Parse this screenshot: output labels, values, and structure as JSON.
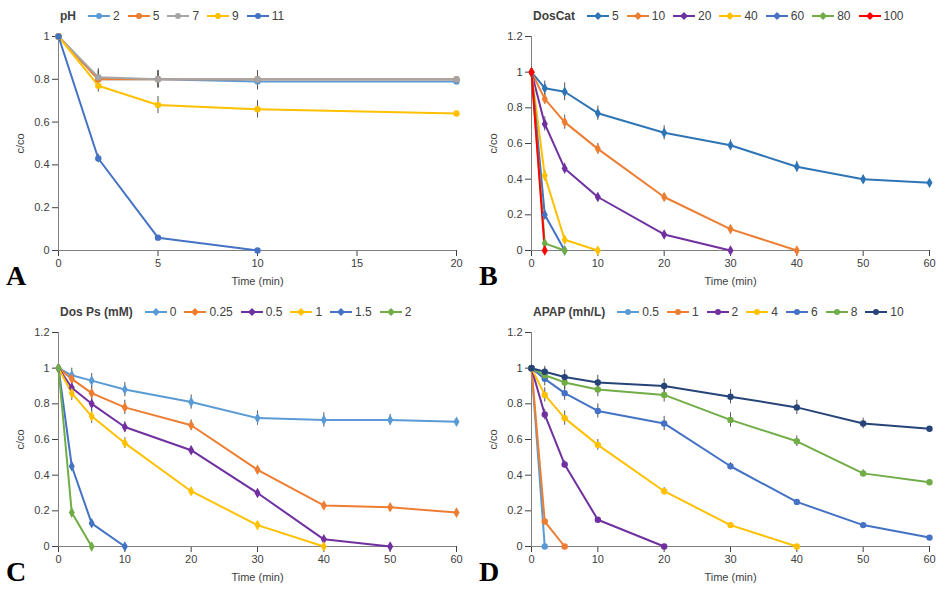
{
  "chart_data": [
    {
      "type": "line",
      "annotation": "A",
      "legend_title": "pH",
      "x_label": "Time (min)",
      "y_label": "c/co",
      "x": [
        0,
        2,
        5,
        10,
        20
      ],
      "xlim": [
        0,
        20
      ],
      "xticks": [
        0,
        5,
        10,
        15,
        20
      ],
      "ylim": [
        0,
        1
      ],
      "yticks": [
        0,
        0.2,
        0.4,
        0.6,
        0.8,
        1
      ],
      "grid": false,
      "legend": "top",
      "marker": "circle",
      "series": [
        {
          "name": "2",
          "color": "#5B9BD5",
          "values": [
            1,
            0.8,
            0.8,
            0.79,
            0.79
          ],
          "errors": [
            0,
            0.04,
            0.04,
            0.04,
            0.03
          ]
        },
        {
          "name": "5",
          "color": "#ED7D31",
          "values": [
            1,
            0.8,
            0.8,
            0.8,
            0.8
          ],
          "errors": [
            0,
            0.04,
            0.04,
            0.04,
            0.03
          ]
        },
        {
          "name": "7",
          "color": "#A5A5A5",
          "values": [
            1,
            0.81,
            0.8,
            0.8,
            0.8
          ],
          "errors": [
            0,
            0.04,
            0.04,
            0.04,
            0.03
          ]
        },
        {
          "name": "9",
          "color": "#FFC000",
          "values": [
            1,
            0.77,
            0.68,
            0.66,
            0.64
          ],
          "errors": [
            0,
            0.03,
            0.04,
            0.04,
            0.03
          ]
        },
        {
          "name": "11",
          "color": "#4472C4",
          "values": [
            1,
            0.43,
            0.06,
            0,
            null
          ],
          "errors": [
            0,
            0.02,
            0.01,
            0,
            null
          ]
        }
      ]
    },
    {
      "type": "line",
      "annotation": "B",
      "legend_title": "DosCat",
      "x_label": "Time (min)",
      "y_label": "c/co",
      "x": [
        0,
        2,
        5,
        10,
        20,
        30,
        40,
        50,
        60
      ],
      "xlim": [
        0,
        60
      ],
      "xticks": [
        0,
        10,
        20,
        30,
        40,
        50,
        60
      ],
      "ylim": [
        0,
        1.2
      ],
      "yticks": [
        0,
        0.2,
        0.4,
        0.6,
        0.8,
        1,
        1.2
      ],
      "grid": false,
      "legend": "top",
      "marker": "diamond",
      "series": [
        {
          "name": "5",
          "color": "#2E75B6",
          "values": [
            1,
            0.91,
            0.89,
            0.77,
            0.66,
            0.59,
            0.47,
            0.4,
            0.38
          ],
          "errors": [
            0.02,
            0.04,
            0.05,
            0.04,
            0.04,
            0.03,
            0.03,
            0.02,
            0.02
          ]
        },
        {
          "name": "10",
          "color": "#ED7D31",
          "values": [
            1,
            0.85,
            0.72,
            0.57,
            0.3,
            0.12,
            0,
            null,
            null
          ],
          "errors": [
            0.02,
            0.03,
            0.04,
            0.03,
            0.02,
            0.01,
            0,
            null,
            null
          ]
        },
        {
          "name": "20",
          "color": "#7030A0",
          "values": [
            1,
            0.71,
            0.46,
            0.3,
            0.09,
            0,
            null,
            null,
            null
          ],
          "errors": [
            0.02,
            0.04,
            0.03,
            0.02,
            0.01,
            0,
            null,
            null,
            null
          ]
        },
        {
          "name": "40",
          "color": "#FFC000",
          "values": [
            1,
            0.42,
            0.06,
            0,
            null,
            null,
            null,
            null,
            null
          ],
          "errors": [
            0.02,
            0.03,
            0.01,
            0,
            null,
            null,
            null,
            null,
            null
          ]
        },
        {
          "name": "60",
          "color": "#4472C4",
          "values": [
            1,
            0.2,
            0,
            null,
            null,
            null,
            null,
            null,
            null
          ],
          "errors": [
            0.02,
            0.02,
            0,
            null,
            null,
            null,
            null,
            null,
            null
          ]
        },
        {
          "name": "80",
          "color": "#70AD47",
          "values": [
            1,
            0.04,
            0,
            null,
            null,
            null,
            null,
            null,
            null
          ],
          "errors": [
            0.02,
            0.01,
            0,
            null,
            null,
            null,
            null,
            null,
            null
          ]
        },
        {
          "name": "100",
          "color": "#FF0000",
          "values": [
            1,
            0,
            null,
            null,
            null,
            null,
            null,
            null,
            null
          ],
          "errors": [
            0.02,
            0,
            null,
            null,
            null,
            null,
            null,
            null,
            null
          ]
        }
      ]
    },
    {
      "type": "line",
      "annotation": "C",
      "legend_title": "Dos Ps (mM)",
      "x_label": "Time (min)",
      "y_label": "c/co",
      "x": [
        0,
        2,
        5,
        10,
        20,
        30,
        40,
        50,
        60
      ],
      "xlim": [
        0,
        60
      ],
      "xticks": [
        0,
        10,
        20,
        30,
        40,
        50,
        60
      ],
      "ylim": [
        0,
        1.2
      ],
      "yticks": [
        0,
        0.2,
        0.4,
        0.6,
        0.8,
        1,
        1.2
      ],
      "grid": false,
      "legend": "top",
      "marker": "diamond",
      "series": [
        {
          "name": "0",
          "color": "#5B9BD5",
          "values": [
            1,
            0.96,
            0.93,
            0.88,
            0.81,
            0.72,
            0.71,
            0.71,
            0.7
          ],
          "errors": [
            0.02,
            0.04,
            0.04,
            0.04,
            0.04,
            0.04,
            0.04,
            0.03,
            0.03
          ]
        },
        {
          "name": "0.25",
          "color": "#ED7D31",
          "values": [
            1,
            0.94,
            0.86,
            0.78,
            0.68,
            0.43,
            0.23,
            0.22,
            0.19
          ],
          "errors": [
            0.02,
            0.04,
            0.04,
            0.04,
            0.03,
            0.02,
            0.01,
            0.01,
            0.01
          ]
        },
        {
          "name": "0.5",
          "color": "#7030A0",
          "values": [
            1,
            0.89,
            0.8,
            0.67,
            0.54,
            0.3,
            0.04,
            0,
            null
          ],
          "errors": [
            0.02,
            0.04,
            0.04,
            0.03,
            0.02,
            0.01,
            0.01,
            0,
            null
          ]
        },
        {
          "name": "1",
          "color": "#FFC000",
          "values": [
            1,
            0.86,
            0.73,
            0.58,
            0.31,
            0.12,
            0,
            null,
            null
          ],
          "errors": [
            0.02,
            0.04,
            0.04,
            0.03,
            0.02,
            0.01,
            0,
            null,
            null
          ]
        },
        {
          "name": "1.5",
          "color": "#4472C4",
          "values": [
            1,
            0.45,
            0.13,
            0,
            null,
            null,
            null,
            null,
            null
          ],
          "errors": [
            0.02,
            0.02,
            0.01,
            0,
            null,
            null,
            null,
            null,
            null
          ]
        },
        {
          "name": "2",
          "color": "#70AD47",
          "values": [
            1,
            0.19,
            0,
            null,
            null,
            null,
            null,
            null,
            null
          ],
          "errors": [
            0.02,
            0.01,
            0,
            null,
            null,
            null,
            null,
            null,
            null
          ]
        }
      ]
    },
    {
      "type": "line",
      "annotation": "D",
      "legend_title": "APAP (mh/L)",
      "x_label": "Time (min)",
      "y_label": "c/co",
      "x": [
        0,
        2,
        5,
        10,
        20,
        30,
        40,
        50,
        60
      ],
      "xlim": [
        0,
        60
      ],
      "xticks": [
        0,
        10,
        20,
        30,
        40,
        50,
        60
      ],
      "ylim": [
        0,
        1.2
      ],
      "yticks": [
        0,
        0.2,
        0.4,
        0.6,
        0.8,
        1,
        1.2
      ],
      "grid": false,
      "legend": "top",
      "marker": "circle",
      "series": [
        {
          "name": "0.5",
          "color": "#5B9BD5",
          "values": [
            1,
            0,
            null,
            null,
            null,
            null,
            null,
            null,
            null
          ],
          "errors": [
            0.02,
            0,
            null,
            null,
            null,
            null,
            null,
            null,
            null
          ]
        },
        {
          "name": "1",
          "color": "#ED7D31",
          "values": [
            1,
            0.14,
            0,
            null,
            null,
            null,
            null,
            null,
            null
          ],
          "errors": [
            0.02,
            0.01,
            0,
            null,
            null,
            null,
            null,
            null,
            null
          ]
        },
        {
          "name": "2",
          "color": "#7030A0",
          "values": [
            1,
            0.74,
            0.46,
            0.15,
            0,
            null,
            null,
            null,
            null
          ],
          "errors": [
            0.02,
            0.03,
            0.02,
            0.01,
            0,
            null,
            null,
            null,
            null
          ]
        },
        {
          "name": "4",
          "color": "#FFC000",
          "values": [
            1,
            0.85,
            0.72,
            0.57,
            0.31,
            0.12,
            0,
            null,
            null
          ],
          "errors": [
            0.02,
            0.04,
            0.04,
            0.03,
            0.02,
            0.01,
            0,
            null,
            null
          ]
        },
        {
          "name": "6",
          "color": "#4472C4",
          "values": [
            1,
            0.94,
            0.86,
            0.76,
            0.69,
            0.45,
            0.25,
            0.12,
            0.05
          ],
          "errors": [
            0.02,
            0.04,
            0.04,
            0.04,
            0.04,
            0.02,
            0.01,
            0.01,
            0.01
          ]
        },
        {
          "name": "8",
          "color": "#70AD47",
          "values": [
            1,
            0.96,
            0.92,
            0.88,
            0.85,
            0.71,
            0.59,
            0.41,
            0.36
          ],
          "errors": [
            0.02,
            0.04,
            0.04,
            0.04,
            0.04,
            0.04,
            0.03,
            0.02,
            0.02
          ]
        },
        {
          "name": "10",
          "color": "#264478",
          "values": [
            1,
            0.98,
            0.95,
            0.92,
            0.9,
            0.84,
            0.78,
            0.69,
            0.66
          ],
          "errors": [
            0.02,
            0.03,
            0.04,
            0.04,
            0.04,
            0.04,
            0.04,
            0.03,
            0.03
          ]
        }
      ]
    }
  ]
}
